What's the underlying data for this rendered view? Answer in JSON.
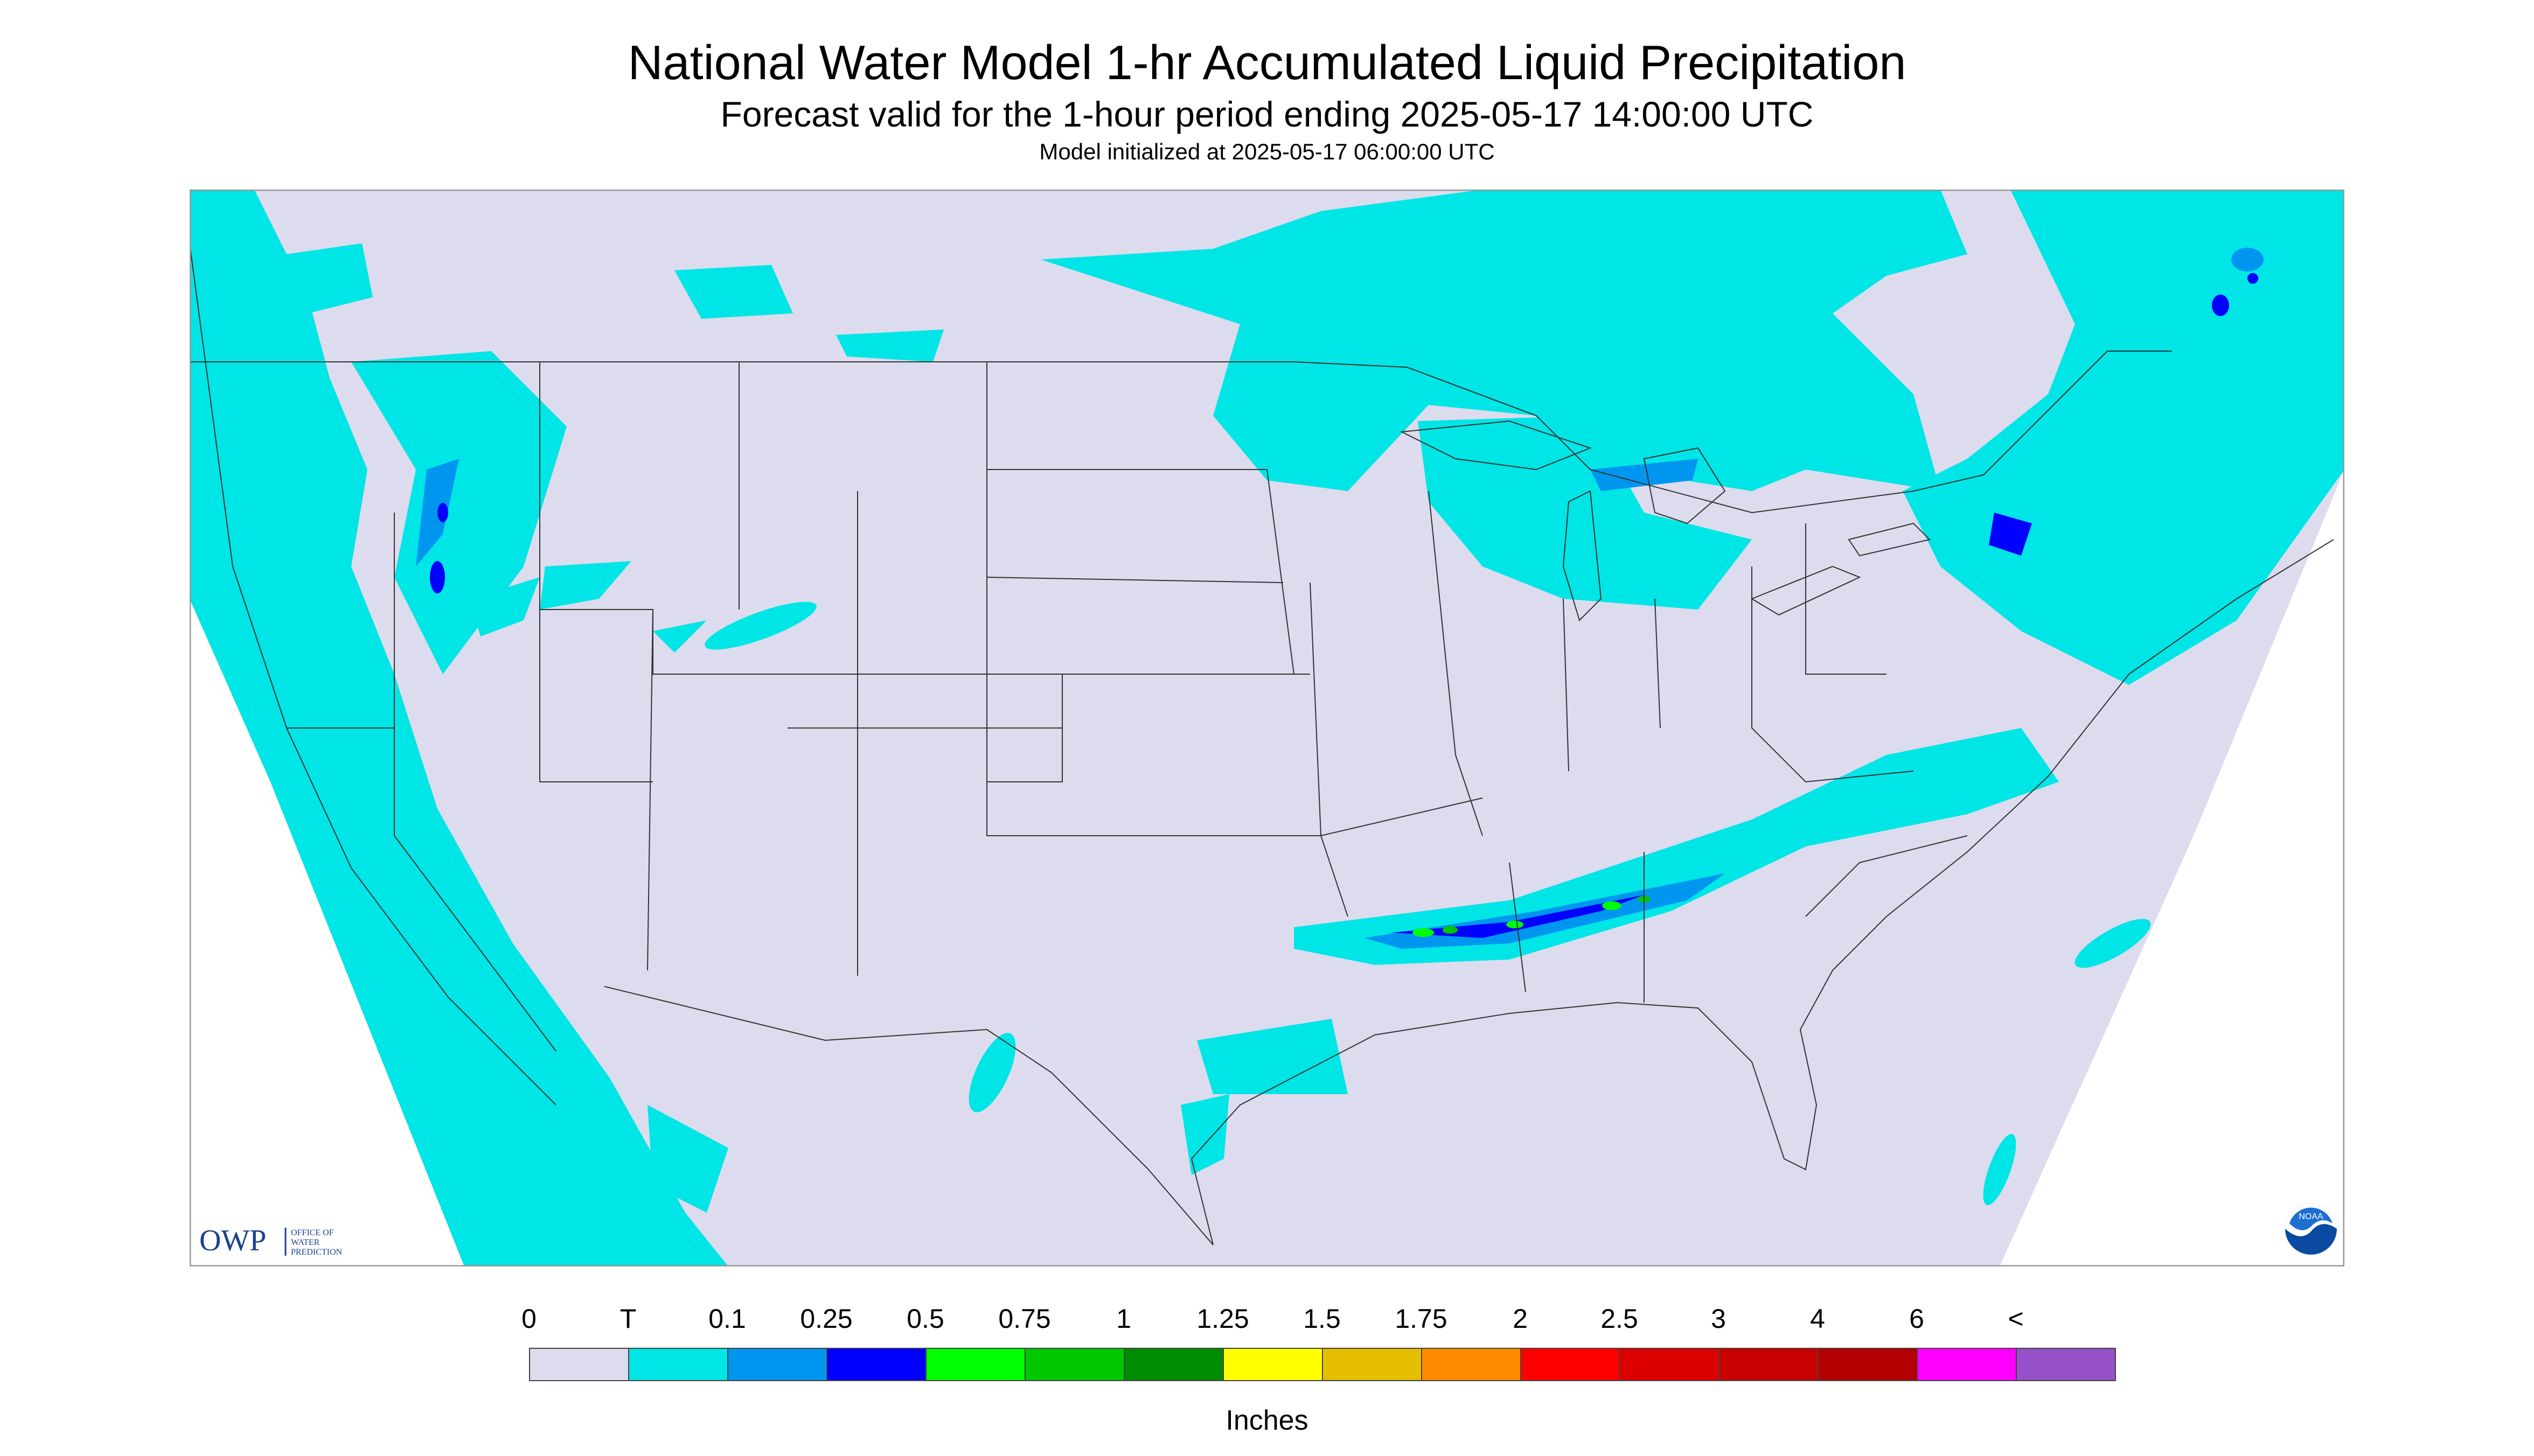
{
  "header": {
    "title": "National Water Model 1-hr Accumulated Liquid Precipitation",
    "subtitle": "Forecast valid for the 1-hour period ending 2025-05-17 14:00:00 UTC",
    "init": "Model initialized at 2025-05-17 06:00:00 UTC"
  },
  "legend": {
    "labels": [
      "0",
      "T",
      "0.1",
      "0.25",
      "0.5",
      "0.75",
      "1",
      "1.25",
      "1.5",
      "1.75",
      "2",
      "2.5",
      "3",
      "4",
      "6",
      "<"
    ],
    "colors": [
      "#dcdcee",
      "#00e5e5",
      "#0096f0",
      "#0000ff",
      "#00ff00",
      "#00c800",
      "#008c00",
      "#ffff00",
      "#e6be00",
      "#ff8c00",
      "#ff0000",
      "#dc0000",
      "#c80000",
      "#b40000",
      "#ff00ff",
      "#9650c8"
    ],
    "units": "Inches"
  },
  "logos": {
    "owp_mark": "OWP",
    "owp_text": "OFFICE OF WATER PREDICTION",
    "noaa_text": "NOAA"
  },
  "colors": {
    "map_bg": "#dcdcee",
    "outside": "#ffffff",
    "trace": "#00e5e5",
    "light": "#0096f0",
    "heavy": "#0000ff",
    "border": "#333333"
  }
}
